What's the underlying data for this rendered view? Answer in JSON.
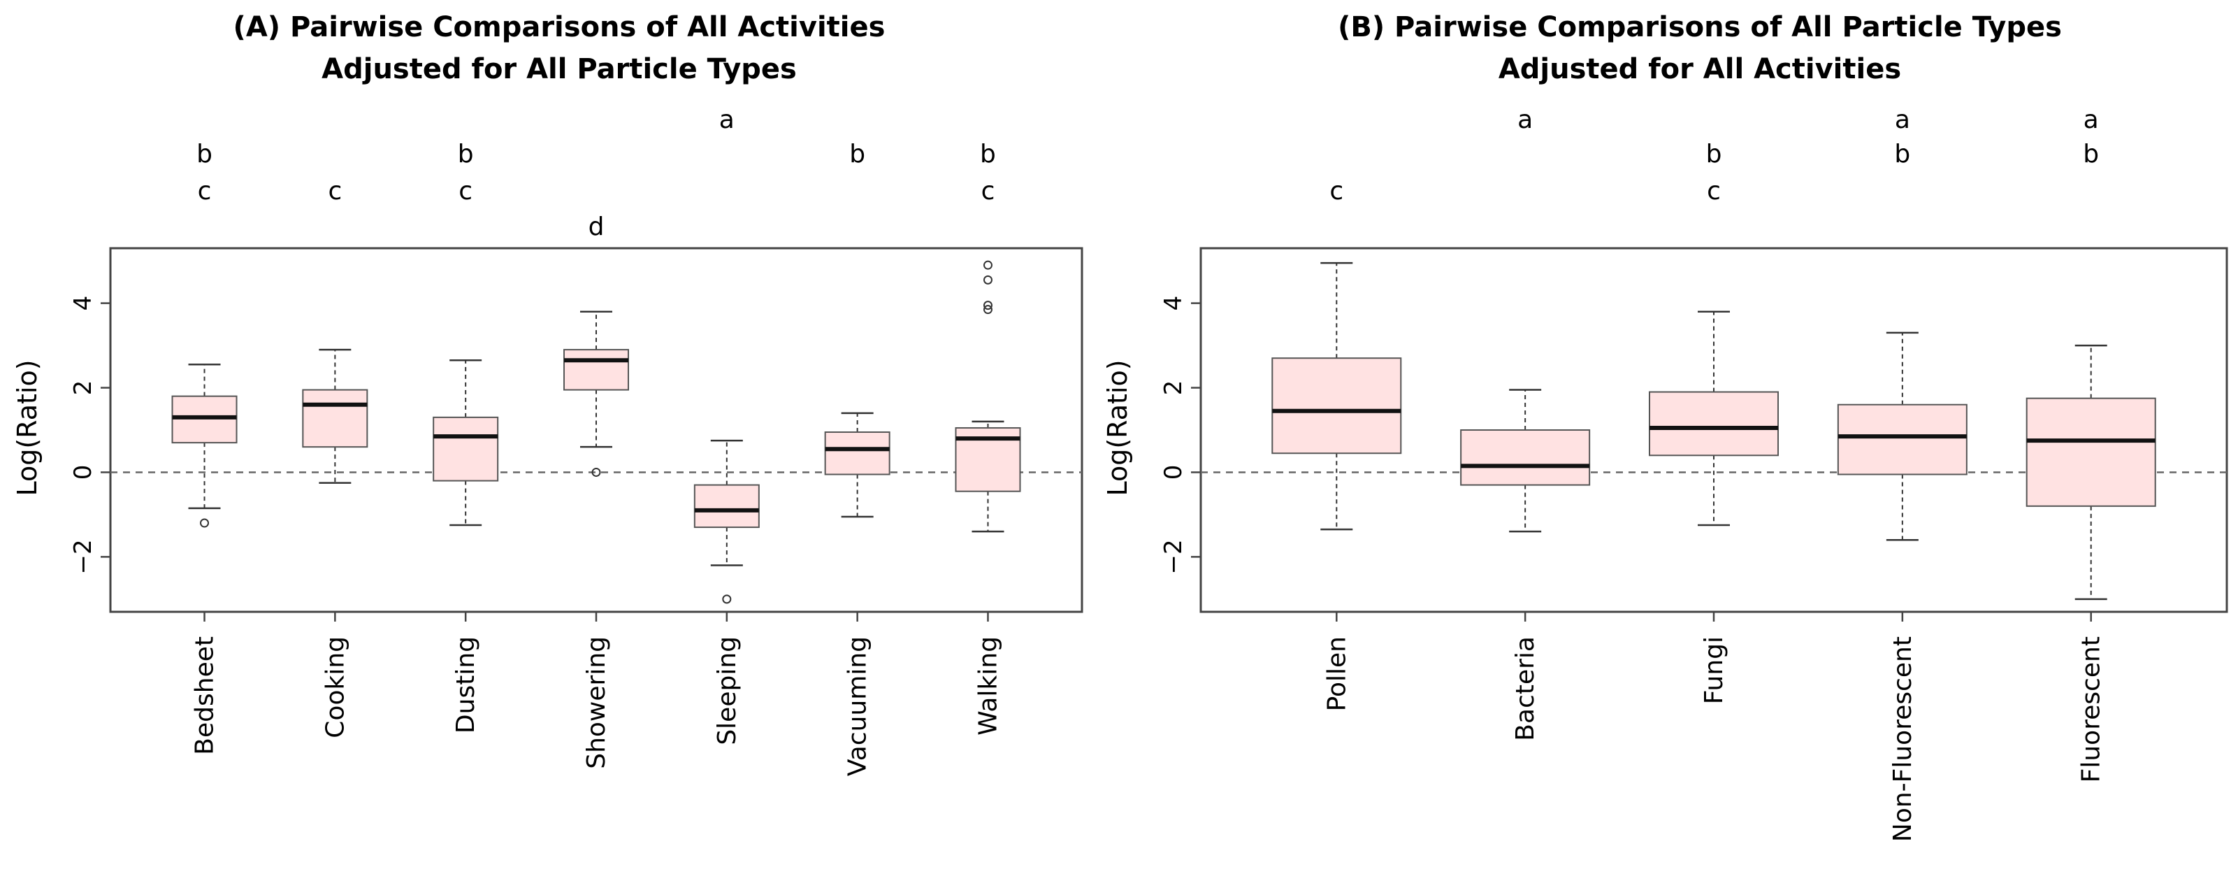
{
  "colors": {
    "box_fill": "#ffe2e2",
    "box_stroke": "#555555",
    "median": "#111111",
    "frame": "#444444",
    "refline": "#666666"
  },
  "chart_data": [
    {
      "type": "boxplot",
      "title_lines": [
        "(A) Pairwise Comparisons of All Activities",
        "Adjusted for All Particle Types"
      ],
      "xlabel": "",
      "ylabel": "Log(Ratio)",
      "ylim": [
        -3.3,
        5.3
      ],
      "yticks": [
        -2,
        0,
        2,
        4
      ],
      "refline": 0,
      "categories": [
        "Bedsheet",
        "Cooking",
        "Dusting",
        "Showering",
        "Sleeping",
        "Vacuuming",
        "Walking"
      ],
      "boxes": [
        {
          "q1": 0.7,
          "median": 1.3,
          "q3": 1.8,
          "whisker_low": -0.85,
          "whisker_high": 2.55,
          "outliers": [
            -1.2
          ]
        },
        {
          "q1": 0.6,
          "median": 1.6,
          "q3": 1.95,
          "whisker_low": -0.25,
          "whisker_high": 2.9,
          "outliers": []
        },
        {
          "q1": -0.2,
          "median": 0.85,
          "q3": 1.3,
          "whisker_low": -1.25,
          "whisker_high": 2.65,
          "outliers": []
        },
        {
          "q1": 1.95,
          "median": 2.65,
          "q3": 2.9,
          "whisker_low": 0.6,
          "whisker_high": 3.8,
          "outliers": [
            0.0
          ]
        },
        {
          "q1": -1.3,
          "median": -0.9,
          "q3": -0.3,
          "whisker_low": -2.2,
          "whisker_high": 0.75,
          "outliers": [
            -3.0
          ]
        },
        {
          "q1": -0.05,
          "median": 0.55,
          "q3": 0.95,
          "whisker_low": -1.05,
          "whisker_high": 1.4,
          "outliers": []
        },
        {
          "q1": -0.45,
          "median": 0.8,
          "q3": 1.05,
          "whisker_low": -1.4,
          "whisker_high": 1.2,
          "outliers": [
            3.85,
            3.95,
            4.55,
            4.9
          ]
        }
      ],
      "letters": [
        [
          "b",
          "c"
        ],
        [
          "c"
        ],
        [
          "b",
          "c"
        ],
        [
          "d"
        ],
        [
          "a"
        ],
        [
          "b"
        ],
        [
          "b",
          "c"
        ]
      ]
    },
    {
      "type": "boxplot",
      "title_lines": [
        "(B) Pairwise Comparisons of All Particle Types",
        "Adjusted for All Activities"
      ],
      "xlabel": "",
      "ylabel": "Log(Ratio)",
      "ylim": [
        -3.3,
        5.3
      ],
      "yticks": [
        -2,
        0,
        2,
        4
      ],
      "refline": 0,
      "categories": [
        "Pollen",
        "Bacteria",
        "Fungi",
        "Non-Fluorescent",
        "Fluorescent"
      ],
      "boxes": [
        {
          "q1": 0.45,
          "median": 1.45,
          "q3": 2.7,
          "whisker_low": -1.35,
          "whisker_high": 4.95,
          "outliers": []
        },
        {
          "q1": -0.3,
          "median": 0.15,
          "q3": 1.0,
          "whisker_low": -1.4,
          "whisker_high": 1.95,
          "outliers": []
        },
        {
          "q1": 0.4,
          "median": 1.05,
          "q3": 1.9,
          "whisker_low": -1.25,
          "whisker_high": 3.8,
          "outliers": []
        },
        {
          "q1": -0.05,
          "median": 0.85,
          "q3": 1.6,
          "whisker_low": -1.6,
          "whisker_high": 3.3,
          "outliers": []
        },
        {
          "q1": -0.8,
          "median": 0.75,
          "q3": 1.75,
          "whisker_low": -3.0,
          "whisker_high": 3.0,
          "outliers": []
        }
      ],
      "letters": [
        [
          "c"
        ],
        [
          "a"
        ],
        [
          "b",
          "c"
        ],
        [
          "a",
          "b"
        ],
        [
          "a",
          "b"
        ]
      ]
    }
  ]
}
